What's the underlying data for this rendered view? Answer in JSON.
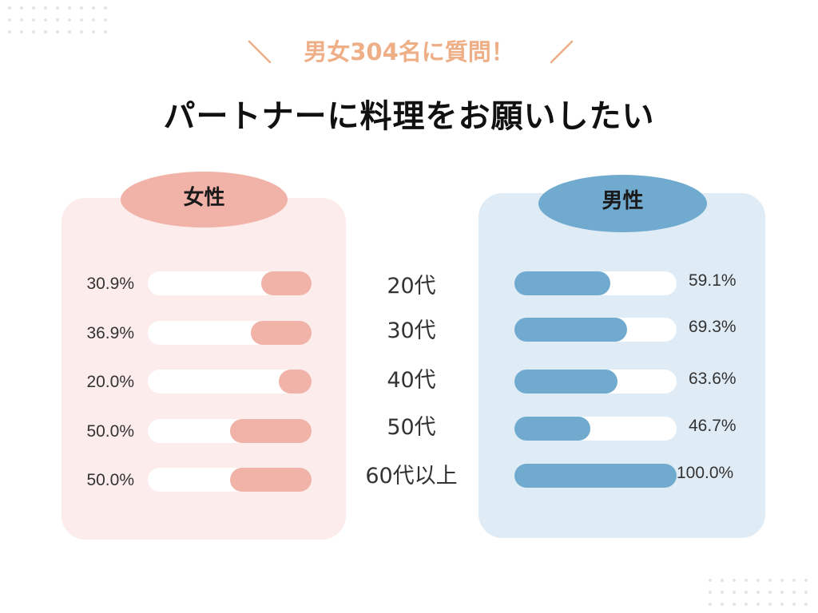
{
  "header": {
    "subtitle": "男女304名に質問！",
    "title": "パートナーに料理をお願いしたい"
  },
  "colors": {
    "female_bar": "#f1b3a8",
    "female_panel": "#fcecec",
    "male_bar": "#70abcf",
    "male_panel": "#e0ecf5",
    "accent_subtitle": "#eeae86"
  },
  "chart_data": {
    "type": "bar",
    "categories": [
      "20代",
      "30代",
      "40代",
      "50代",
      "60代以上"
    ],
    "series": [
      {
        "name": "女性",
        "values": [
          30.9,
          36.9,
          20.0,
          50.0,
          50.0
        ],
        "labels": [
          "30.9%",
          "36.9%",
          "20.0%",
          "50.0%",
          "50.0%"
        ]
      },
      {
        "name": "男性",
        "values": [
          59.1,
          69.3,
          63.6,
          46.7,
          100.0
        ],
        "labels": [
          "59.1%",
          "69.3%",
          "63.6%",
          "46.7%",
          "100.0%"
        ]
      }
    ],
    "xlim": [
      0,
      100
    ],
    "orientation": "horizontal"
  }
}
